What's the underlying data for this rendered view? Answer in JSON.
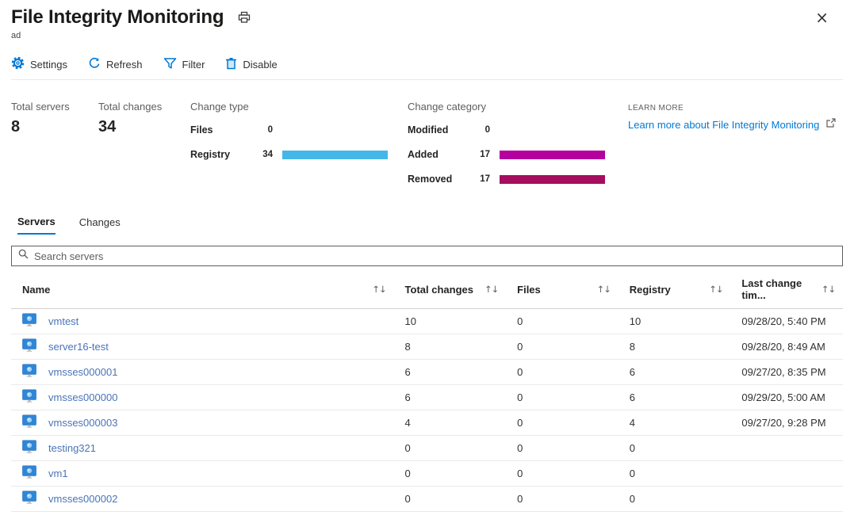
{
  "header": {
    "title": "File Integrity Monitoring",
    "subtitle": "ad",
    "close_glyph": "×"
  },
  "toolbar": {
    "items": [
      {
        "label": "Settings",
        "icon": "gear-icon"
      },
      {
        "label": "Refresh",
        "icon": "refresh-icon"
      },
      {
        "label": "Filter",
        "icon": "filter-icon"
      },
      {
        "label": "Disable",
        "icon": "trash-icon"
      }
    ]
  },
  "summary": {
    "total_servers": {
      "label": "Total servers",
      "value": "8"
    },
    "total_changes": {
      "label": "Total changes",
      "value": "34"
    },
    "change_type": {
      "label": "Change type",
      "bar_color": "#45b6e8",
      "rows": [
        {
          "label": "Files",
          "value": 0
        },
        {
          "label": "Registry",
          "value": 34
        }
      ]
    },
    "change_category": {
      "label": "Change category",
      "rows": [
        {
          "label": "Modified",
          "value": 0,
          "color": "#b4009e"
        },
        {
          "label": "Added",
          "value": 17,
          "color": "#b4009e"
        },
        {
          "label": "Removed",
          "value": 17,
          "color": "#a50e5e"
        }
      ]
    },
    "learn_more": {
      "eyebrow": "LEARN MORE",
      "link_text": "Learn more about File Integrity Monitoring"
    }
  },
  "tabs": [
    {
      "label": "Servers",
      "active": true
    },
    {
      "label": "Changes",
      "active": false
    }
  ],
  "search": {
    "placeholder": "Search servers"
  },
  "table": {
    "sort_glyph": "↑↓",
    "columns": [
      "Name",
      "Total changes",
      "Files",
      "Registry",
      "Last change tim..."
    ],
    "rows": [
      {
        "name": "vmtest",
        "total_changes": "10",
        "files": "0",
        "registry": "10",
        "last_change": "09/28/20, 5:40 PM"
      },
      {
        "name": "server16-test",
        "total_changes": "8",
        "files": "0",
        "registry": "8",
        "last_change": "09/28/20, 8:49 AM"
      },
      {
        "name": "vmsses000001",
        "total_changes": "6",
        "files": "0",
        "registry": "6",
        "last_change": "09/27/20, 8:35 PM"
      },
      {
        "name": "vmsses000000",
        "total_changes": "6",
        "files": "0",
        "registry": "6",
        "last_change": "09/29/20, 5:00 AM"
      },
      {
        "name": "vmsses000003",
        "total_changes": "4",
        "files": "0",
        "registry": "4",
        "last_change": "09/27/20, 9:28 PM"
      },
      {
        "name": "testing321",
        "total_changes": "0",
        "files": "0",
        "registry": "0",
        "last_change": ""
      },
      {
        "name": "vm1",
        "total_changes": "0",
        "files": "0",
        "registry": "0",
        "last_change": ""
      },
      {
        "name": "vmsses000002",
        "total_changes": "0",
        "files": "0",
        "registry": "0",
        "last_change": ""
      }
    ]
  },
  "colors": {
    "accent": "#0078d4",
    "registry_bar": "#45b6e8",
    "added_bar": "#b4009e",
    "removed_bar": "#a50e5e",
    "link": "#4a74b8"
  }
}
